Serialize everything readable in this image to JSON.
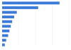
{
  "chart_data": {
    "type": "bar",
    "orientation": "horizontal",
    "categories": [
      null,
      null,
      null,
      null,
      null,
      null,
      null,
      null,
      null,
      null
    ],
    "values": [
      86,
      54,
      22,
      18,
      15,
      13,
      11,
      9,
      6,
      4
    ],
    "color": "#3d7bd9",
    "ylim": [
      0,
      100
    ],
    "yticks": [
      0,
      25,
      50,
      75,
      100
    ],
    "grid": true,
    "tick_labels": false
  }
}
